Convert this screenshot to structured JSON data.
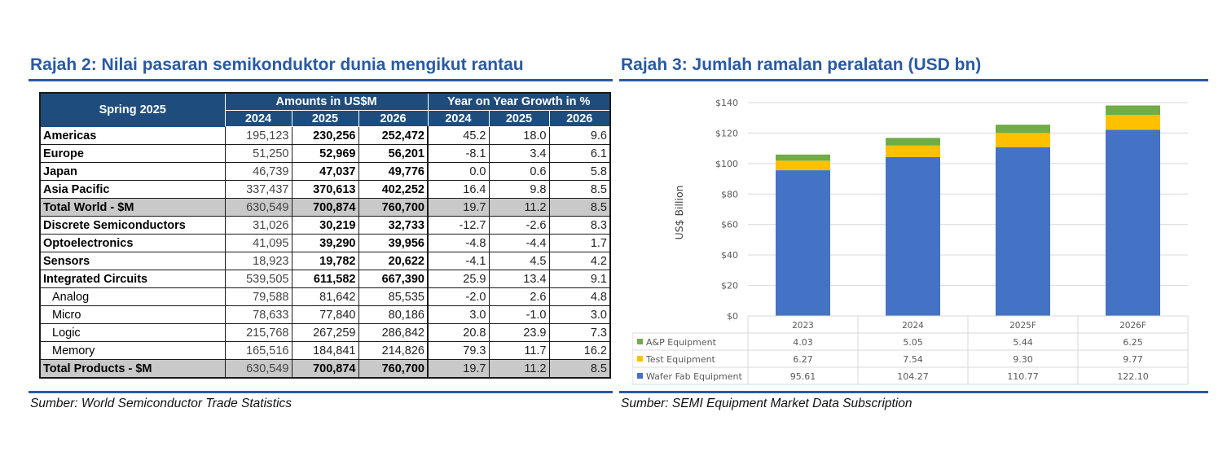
{
  "left_panel": {
    "title": "Rajah 2: Nilai pasaran semikonduktor dunia mengikut rantau",
    "source": "Sumber: World Semiconductor Trade Statistics",
    "table": {
      "corner": "Spring 2025",
      "group_amounts": "Amounts in US$M",
      "group_growth": "Year on Year Growth in %",
      "years": [
        "2024",
        "2025",
        "2026",
        "2024",
        "2025",
        "2026"
      ],
      "rows": [
        {
          "label": "Americas",
          "cells": [
            "195,123",
            "230,256",
            "252,472",
            "45.2",
            "18.0",
            "9.6"
          ]
        },
        {
          "label": "Europe",
          "cells": [
            "51,250",
            "52,969",
            "56,201",
            "-8.1",
            "3.4",
            "6.1"
          ]
        },
        {
          "label": "Japan",
          "cells": [
            "46,739",
            "47,037",
            "49,776",
            "0.0",
            "0.6",
            "5.8"
          ]
        },
        {
          "label": "Asia Pacific",
          "cells": [
            "337,437",
            "370,613",
            "402,252",
            "16.4",
            "9.8",
            "8.5"
          ]
        },
        {
          "label": "Total World - $M",
          "cells": [
            "630,549",
            "700,874",
            "760,700",
            "19.7",
            "11.2",
            "8.5"
          ]
        },
        {
          "label": "Discrete Semiconductors",
          "cells": [
            "31,026",
            "30,219",
            "32,733",
            "-12.7",
            "-2.6",
            "8.3"
          ]
        },
        {
          "label": "Optoelectronics",
          "cells": [
            "41,095",
            "39,290",
            "39,956",
            "-4.8",
            "-4.4",
            "1.7"
          ]
        },
        {
          "label": "Sensors",
          "cells": [
            "18,923",
            "19,782",
            "20,622",
            "-4.1",
            "4.5",
            "4.2"
          ]
        },
        {
          "label": "Integrated Circuits",
          "cells": [
            "539,505",
            "611,582",
            "667,390",
            "25.9",
            "13.4",
            "9.1"
          ]
        },
        {
          "label": "Analog",
          "cells": [
            "79,588",
            "81,642",
            "85,535",
            "-2.0",
            "2.6",
            "4.8"
          ]
        },
        {
          "label": "Micro",
          "cells": [
            "78,633",
            "77,840",
            "80,186",
            "3.0",
            "-1.0",
            "3.0"
          ]
        },
        {
          "label": "Logic",
          "cells": [
            "215,768",
            "267,259",
            "286,842",
            "20.8",
            "23.9",
            "7.3"
          ]
        },
        {
          "label": "Memory",
          "cells": [
            "165,516",
            "184,841",
            "214,826",
            "79.3",
            "11.7",
            "16.2"
          ]
        },
        {
          "label": "Total Products - $M",
          "cells": [
            "630,549",
            "700,874",
            "760,700",
            "19.7",
            "11.2",
            "8.5"
          ]
        }
      ]
    }
  },
  "right_panel": {
    "title": "Rajah 3: Jumlah ramalan peralatan (USD bn)",
    "source": "Sumber: SEMI Equipment Market Data Subscription"
  },
  "colors": {
    "title_blue": "#2a5aa2",
    "header_navy": "#1e4d7d",
    "wafer_fab": "#4472c4",
    "test": "#ffc000",
    "ap": "#70ad47",
    "total_row_gray": "#c9c9c9"
  },
  "chart_data": {
    "type": "bar",
    "stacked": true,
    "categories": [
      "2023",
      "2024",
      "2025F",
      "2026F"
    ],
    "series": [
      {
        "name": "Wafer Fab Equipment",
        "values": [
          95.61,
          104.27,
          110.77,
          122.1
        ],
        "labels": [
          "95.61",
          "104.27",
          "110.77",
          "122.10"
        ],
        "color": "#4472c4"
      },
      {
        "name": "Test Equipment",
        "values": [
          6.27,
          7.54,
          9.3,
          9.77
        ],
        "labels": [
          "6.27",
          "7.54",
          "9.30",
          "9.77"
        ],
        "color": "#ffc000"
      },
      {
        "name": "A&P Equipment",
        "values": [
          4.03,
          5.05,
          5.44,
          6.25
        ],
        "labels": [
          "4.03",
          "5.05",
          "5.44",
          "6.25"
        ],
        "color": "#70ad47"
      }
    ],
    "ylabel": "US$ Billion",
    "ylim": [
      0,
      140
    ],
    "yticks": [
      "$0",
      "$20",
      "$40",
      "$60",
      "$80",
      "$100",
      "$120",
      "$140"
    ],
    "grid": true,
    "data_table": true
  }
}
